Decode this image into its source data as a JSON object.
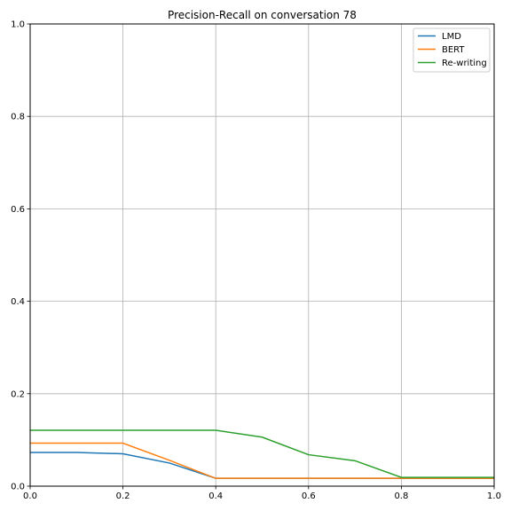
{
  "chart_data": {
    "type": "line",
    "title": "Precision-Recall on conversation 78",
    "xlabel": "",
    "ylabel": "",
    "xlim": [
      0,
      1
    ],
    "ylim": [
      0,
      1
    ],
    "xticks": [
      "0.0",
      "0.2",
      "0.4",
      "0.6",
      "0.8",
      "1.0"
    ],
    "yticks": [
      "0.0",
      "0.2",
      "0.4",
      "0.6",
      "0.8",
      "1.0"
    ],
    "grid": true,
    "legend_position": "top-right",
    "x": [
      0.0,
      0.1,
      0.2,
      0.3,
      0.4,
      0.5,
      0.6,
      0.7,
      0.8,
      0.9,
      1.0
    ],
    "series": [
      {
        "name": "LMD",
        "color": "#1f77b4",
        "values": [
          0.073,
          0.073,
          0.07,
          0.05,
          0.017,
          0.017,
          0.017,
          0.017,
          0.017,
          0.017,
          0.017
        ]
      },
      {
        "name": "BERT",
        "color": "#ff7f0e",
        "values": [
          0.093,
          0.093,
          0.093,
          0.056,
          0.017,
          0.017,
          0.017,
          0.017,
          0.017,
          0.017,
          0.017
        ]
      },
      {
        "name": "Re-writing",
        "color": "#2ca02c",
        "values": [
          0.121,
          0.121,
          0.121,
          0.121,
          0.121,
          0.106,
          0.068,
          0.055,
          0.019,
          0.019,
          0.019
        ]
      }
    ]
  }
}
